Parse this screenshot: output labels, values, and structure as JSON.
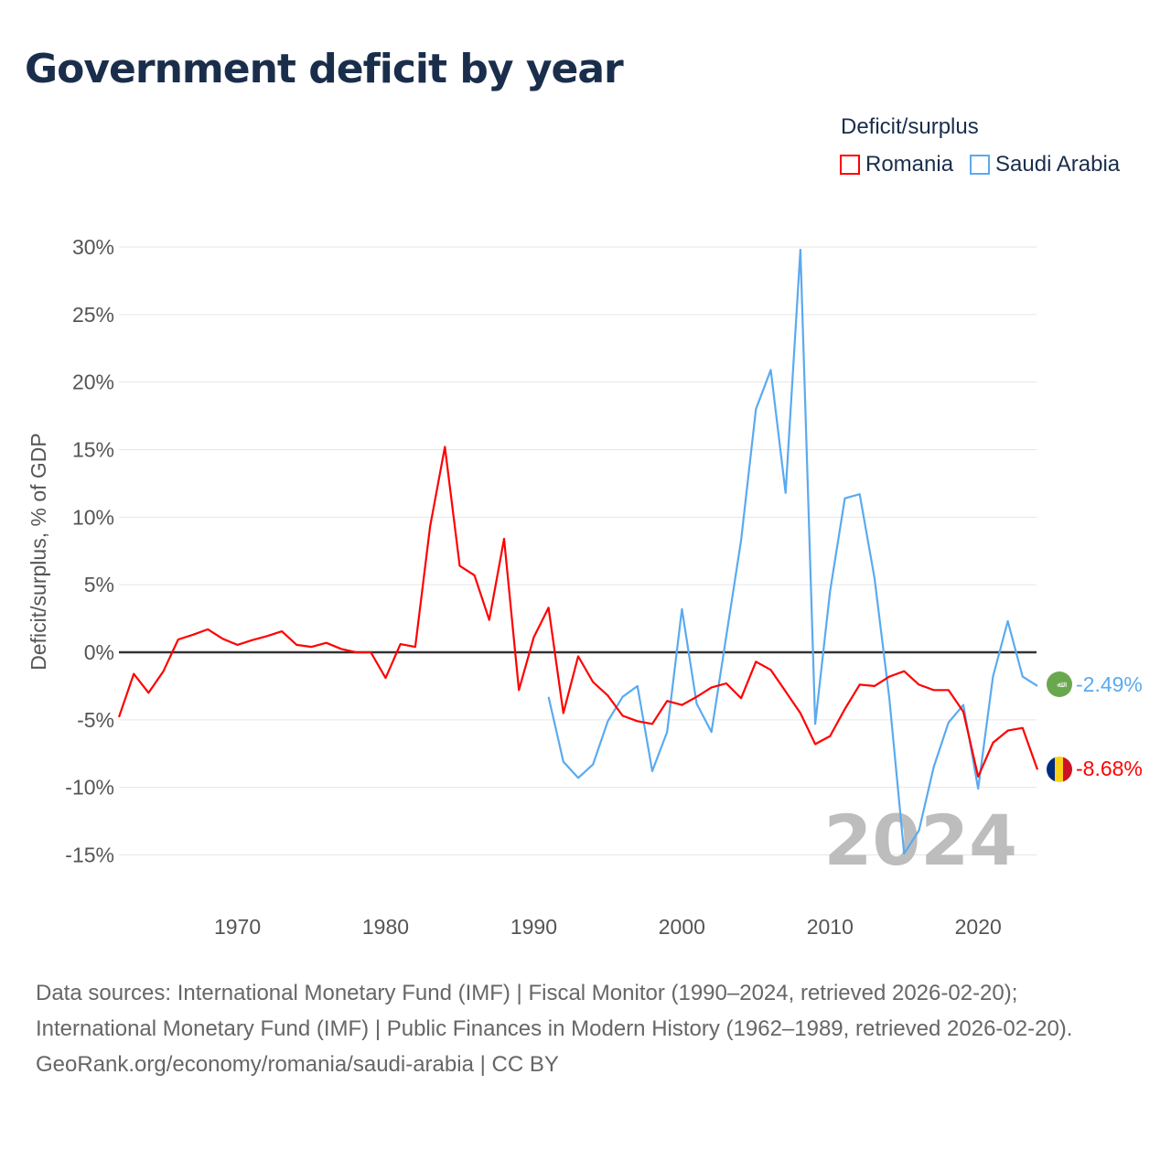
{
  "title": "Government deficit by year",
  "legend": {
    "title": "Deficit/surplus",
    "items": [
      {
        "name": "Romania",
        "color": "#ff0000"
      },
      {
        "name": "Saudi Arabia",
        "color": "#5aaaf0"
      }
    ]
  },
  "year_watermark": "2024",
  "end_labels": {
    "saudi": "-2.49%",
    "romania": "-8.68%"
  },
  "icons": {
    "saudi": "saudi-arabia-flag-icon",
    "romania": "romania-flag-icon"
  },
  "footer": {
    "sources": "Data sources: International Monetary Fund (IMF) | Fiscal Monitor (1990–2024, retrieved 2026-02-20); International Monetary Fund (IMF) | Public Finances in Modern History (1962–1989, retrieved 2026-02-20).",
    "credit": "GeoRank.org/economy/romania/saudi-arabia | CC BY"
  },
  "chart_data": {
    "type": "line",
    "title": "Government deficit by year",
    "xlabel": "",
    "ylabel": "Deficit/surplus, % of GDP",
    "xlim": [
      1962,
      2024
    ],
    "ylim": [
      -15,
      30
    ],
    "x_ticks": [
      1970,
      1980,
      1990,
      2000,
      2010,
      2020
    ],
    "y_ticks": [
      {
        "v": 30,
        "label": "30%"
      },
      {
        "v": 25,
        "label": "25%"
      },
      {
        "v": 20,
        "label": "20%"
      },
      {
        "v": 15,
        "label": "15%"
      },
      {
        "v": 10,
        "label": "10%"
      },
      {
        "v": 5,
        "label": "5%"
      },
      {
        "v": 0,
        "label": "0%"
      },
      {
        "v": -5,
        "label": "-5%"
      },
      {
        "v": -10,
        "label": "-10%"
      },
      {
        "v": -15,
        "label": "-15%"
      }
    ],
    "grid": true,
    "legend_position": "top-right",
    "series": [
      {
        "name": "Romania",
        "color": "#ff0000",
        "start_year": 1962,
        "values": [
          -4.8,
          -1.6,
          -3.0,
          -1.4,
          0.95,
          1.3,
          1.7,
          1.0,
          0.55,
          0.9,
          1.2,
          1.55,
          0.55,
          0.4,
          0.7,
          0.25,
          0.0,
          0.0,
          -1.9,
          0.6,
          0.4,
          9.3,
          15.2,
          6.4,
          5.7,
          2.4,
          8.4,
          -2.8,
          1.1,
          3.3,
          -4.5,
          -0.3,
          -2.2,
          -3.2,
          -4.7,
          -5.1,
          -5.3,
          -3.6,
          -3.9,
          -3.3,
          -2.6,
          -2.3,
          -3.4,
          -0.7,
          -1.3,
          -2.9,
          -4.5,
          -6.8,
          -6.2,
          -4.2,
          -2.4,
          -2.5,
          -1.8,
          -1.4,
          -2.4,
          -2.8,
          -2.8,
          -4.4,
          -9.2,
          -6.7,
          -5.8,
          -5.6,
          -8.68
        ]
      },
      {
        "name": "Saudi Arabia",
        "color": "#5aaaf0",
        "start_year": 1991,
        "values": [
          -3.3,
          -8.1,
          -9.3,
          -8.3,
          -5.1,
          -3.3,
          -2.5,
          -8.8,
          -5.9,
          3.2,
          -3.8,
          -5.9,
          1.2,
          8.3,
          18.0,
          20.9,
          11.8,
          29.8,
          -5.3,
          4.5,
          11.4,
          11.7,
          5.5,
          -3.4,
          -14.9,
          -13.2,
          -8.5,
          -5.2,
          -3.9,
          -10.1,
          -1.8,
          2.3,
          -1.8,
          -2.49
        ]
      }
    ]
  }
}
